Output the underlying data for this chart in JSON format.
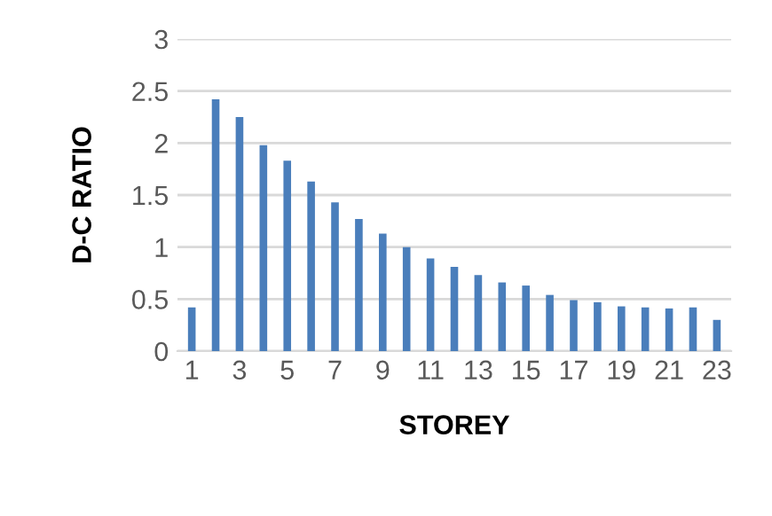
{
  "chart_data": {
    "type": "bar",
    "xlabel": "STOREY",
    "ylabel": "D-C RATIO",
    "categories": [
      "1",
      null,
      "3",
      null,
      "5",
      null,
      "7",
      null,
      "9",
      null,
      "11",
      null,
      "13",
      null,
      "15",
      null,
      "17",
      null,
      "19",
      null,
      "21",
      null,
      "23"
    ],
    "values": [
      0.42,
      2.42,
      2.25,
      1.98,
      1.83,
      1.63,
      1.43,
      1.27,
      1.13,
      1.0,
      0.89,
      0.81,
      0.73,
      0.66,
      0.63,
      0.54,
      0.49,
      0.47,
      0.43,
      0.42,
      0.41,
      0.42,
      0.3
    ],
    "color": "#4a7ebb",
    "ylim": [
      0,
      3
    ],
    "yticks": [
      0,
      0.5,
      1,
      1.5,
      2,
      2.5,
      3
    ],
    "grid": "y",
    "legend": false
  }
}
